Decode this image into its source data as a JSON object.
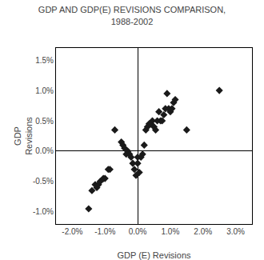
{
  "chart_data": {
    "type": "scatter",
    "title": "GDP AND GDP(E) REVISIONS COMPARISON,\n1988-2002",
    "xlabel": "GDP (E) Revisions",
    "ylabel": "GDP\nRevisions",
    "x": [
      -1.5,
      -1.4,
      -1.3,
      -1.25,
      -1.2,
      -1.15,
      -1.05,
      -1.0,
      -0.9,
      -0.85,
      -0.7,
      -0.5,
      -0.45,
      -0.4,
      -0.35,
      -0.3,
      -0.25,
      -0.2,
      -0.15,
      -0.1,
      -0.05,
      0.0,
      0.0,
      0.05,
      0.1,
      0.15,
      0.2,
      0.25,
      0.3,
      0.35,
      0.4,
      0.45,
      0.5,
      0.55,
      0.6,
      0.65,
      0.7,
      0.75,
      0.8,
      0.85,
      0.9,
      0.95,
      1.0,
      1.05,
      1.1,
      1.15,
      1.5,
      2.5
    ],
    "values": [
      -0.95,
      -0.65,
      -0.55,
      -0.6,
      -0.55,
      -0.5,
      -0.45,
      -0.45,
      -0.3,
      -0.3,
      0.35,
      0.15,
      0.1,
      0.05,
      -0.05,
      0.0,
      -0.05,
      -0.1,
      -0.2,
      -0.3,
      -0.4,
      -0.1,
      -0.2,
      -0.35,
      -0.1,
      -0.05,
      0.1,
      0.35,
      0.4,
      0.45,
      0.45,
      0.5,
      0.4,
      0.35,
      0.5,
      0.65,
      0.5,
      0.5,
      0.6,
      0.7,
      0.95,
      0.7,
      0.65,
      0.7,
      0.8,
      0.85,
      0.35,
      1.0
    ],
    "color": "#1a1a1a",
    "marker": "diamond",
    "xlim": [
      -2.5,
      3.5
    ],
    "ylim": [
      -1.2,
      1.7
    ],
    "xticks": [
      {
        "value": -2.0,
        "label": "-2.0%"
      },
      {
        "value": -1.0,
        "label": "-1.0%"
      },
      {
        "value": 0.0,
        "label": "0.0%"
      },
      {
        "value": 1.0,
        "label": "1.0%"
      },
      {
        "value": 2.0,
        "label": "2.0%"
      },
      {
        "value": 3.0,
        "label": "3.0%"
      }
    ],
    "yticks": [
      {
        "value": -1.0,
        "label": "-1.0%"
      },
      {
        "value": -0.5,
        "label": "-0.5%"
      },
      {
        "value": 0.0,
        "label": "0.0%"
      },
      {
        "value": 0.5,
        "label": "0.5%"
      },
      {
        "value": 1.0,
        "label": "1.0%"
      },
      {
        "value": 1.5,
        "label": "1.5%"
      }
    ],
    "grid": false
  }
}
